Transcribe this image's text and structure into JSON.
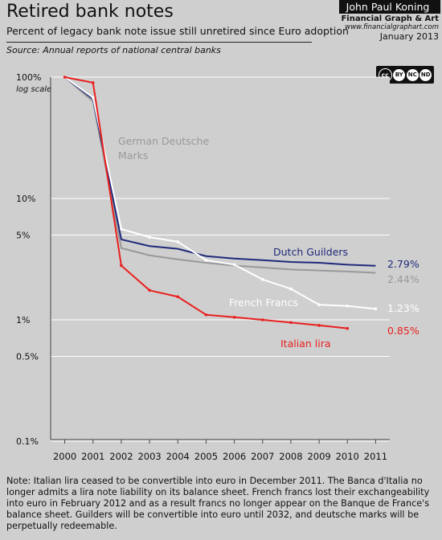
{
  "header": {
    "title": "Retired bank notes",
    "subtitle": "Percent of legacy bank note issue still unretired since Euro adoption",
    "source": "Source: Annual reports of national central banks"
  },
  "credit": {
    "author": "John Paul Koning",
    "firm": "Financial Graph & Art",
    "site": "www.financialgraphart.com",
    "date": "January 2013",
    "license_icons": [
      "cc-icon",
      "by-icon",
      "nc-icon",
      "nd-icon"
    ],
    "license_labels": [
      "cc",
      "BY",
      "NC",
      "ND"
    ]
  },
  "chart_data": {
    "type": "line",
    "x": [
      2000,
      2001,
      2002,
      2003,
      2004,
      2005,
      2006,
      2007,
      2008,
      2009,
      2010,
      2011
    ],
    "xlim": [
      1999.5,
      2011.5
    ],
    "ylim": [
      0.1,
      100
    ],
    "yscale": "log",
    "ylabel": "log scale",
    "y_ticks": [
      {
        "value": 100,
        "label": "100%"
      },
      {
        "value": 10,
        "label": "10%"
      },
      {
        "value": 5,
        "label": "5%"
      },
      {
        "value": 1,
        "label": "1%"
      },
      {
        "value": 0.5,
        "label": "0.5%"
      },
      {
        "value": 0.1,
        "label": "0.1%"
      }
    ],
    "x_tick_labels": [
      "2000",
      "2001",
      "2002",
      "2003",
      "2004",
      "2005",
      "2006",
      "2007",
      "2008",
      "2009",
      "2010",
      "2011"
    ],
    "grid": "horizontal",
    "series": [
      {
        "name": "German Deutsche Marks",
        "color": "#999999",
        "x": [
          2000,
          2001,
          2002,
          2003,
          2004,
          2005,
          2006,
          2007,
          2008,
          2009,
          2010,
          2011
        ],
        "values": [
          100,
          63,
          3.9,
          3.4,
          3.15,
          2.95,
          2.8,
          2.7,
          2.6,
          2.55,
          2.5,
          2.44
        ],
        "end_label": "2.44%",
        "markers": false
      },
      {
        "name": "Dutch Guilders",
        "color": "#1f2a7a",
        "x": [
          2000,
          2001,
          2002,
          2003,
          2004,
          2005,
          2006,
          2007,
          2008,
          2009,
          2010,
          2011
        ],
        "values": [
          100,
          66,
          4.6,
          4.05,
          3.85,
          3.35,
          3.2,
          3.1,
          3.0,
          2.95,
          2.85,
          2.79
        ],
        "end_label": "2.79%",
        "markers": false
      },
      {
        "name": "French Francs",
        "color": "#ffffff",
        "x": [
          2000,
          2001,
          2002,
          2003,
          2004,
          2005,
          2006,
          2007,
          2008,
          2009,
          2010,
          2011
        ],
        "values": [
          100,
          68,
          5.6,
          4.8,
          4.4,
          3.1,
          2.85,
          2.15,
          1.8,
          1.33,
          1.3,
          1.23
        ],
        "end_label": "1.23%",
        "markers": true
      },
      {
        "name": "Italian lira",
        "color": "#e8201f",
        "x": [
          2000,
          2001,
          2002,
          2003,
          2004,
          2005,
          2006,
          2007,
          2008,
          2009,
          2010
        ],
        "values": [
          100,
          90,
          2.8,
          1.75,
          1.55,
          1.1,
          1.05,
          1.0,
          0.95,
          0.9,
          0.85
        ],
        "end_label": "0.85%",
        "markers": true
      }
    ]
  },
  "note": "Note: Italian lira ceased to be convertible into euro in December 2011. The Banca d'Italia no longer admits a lira note liability on its balance sheet. French francs lost their exchangeability into euro in February 2012 and as a result francs no longer appear on the Banque de France's balance sheet. Guilders will be convertible into euro until 2032, and deutsche marks will be perpetually redeemable."
}
